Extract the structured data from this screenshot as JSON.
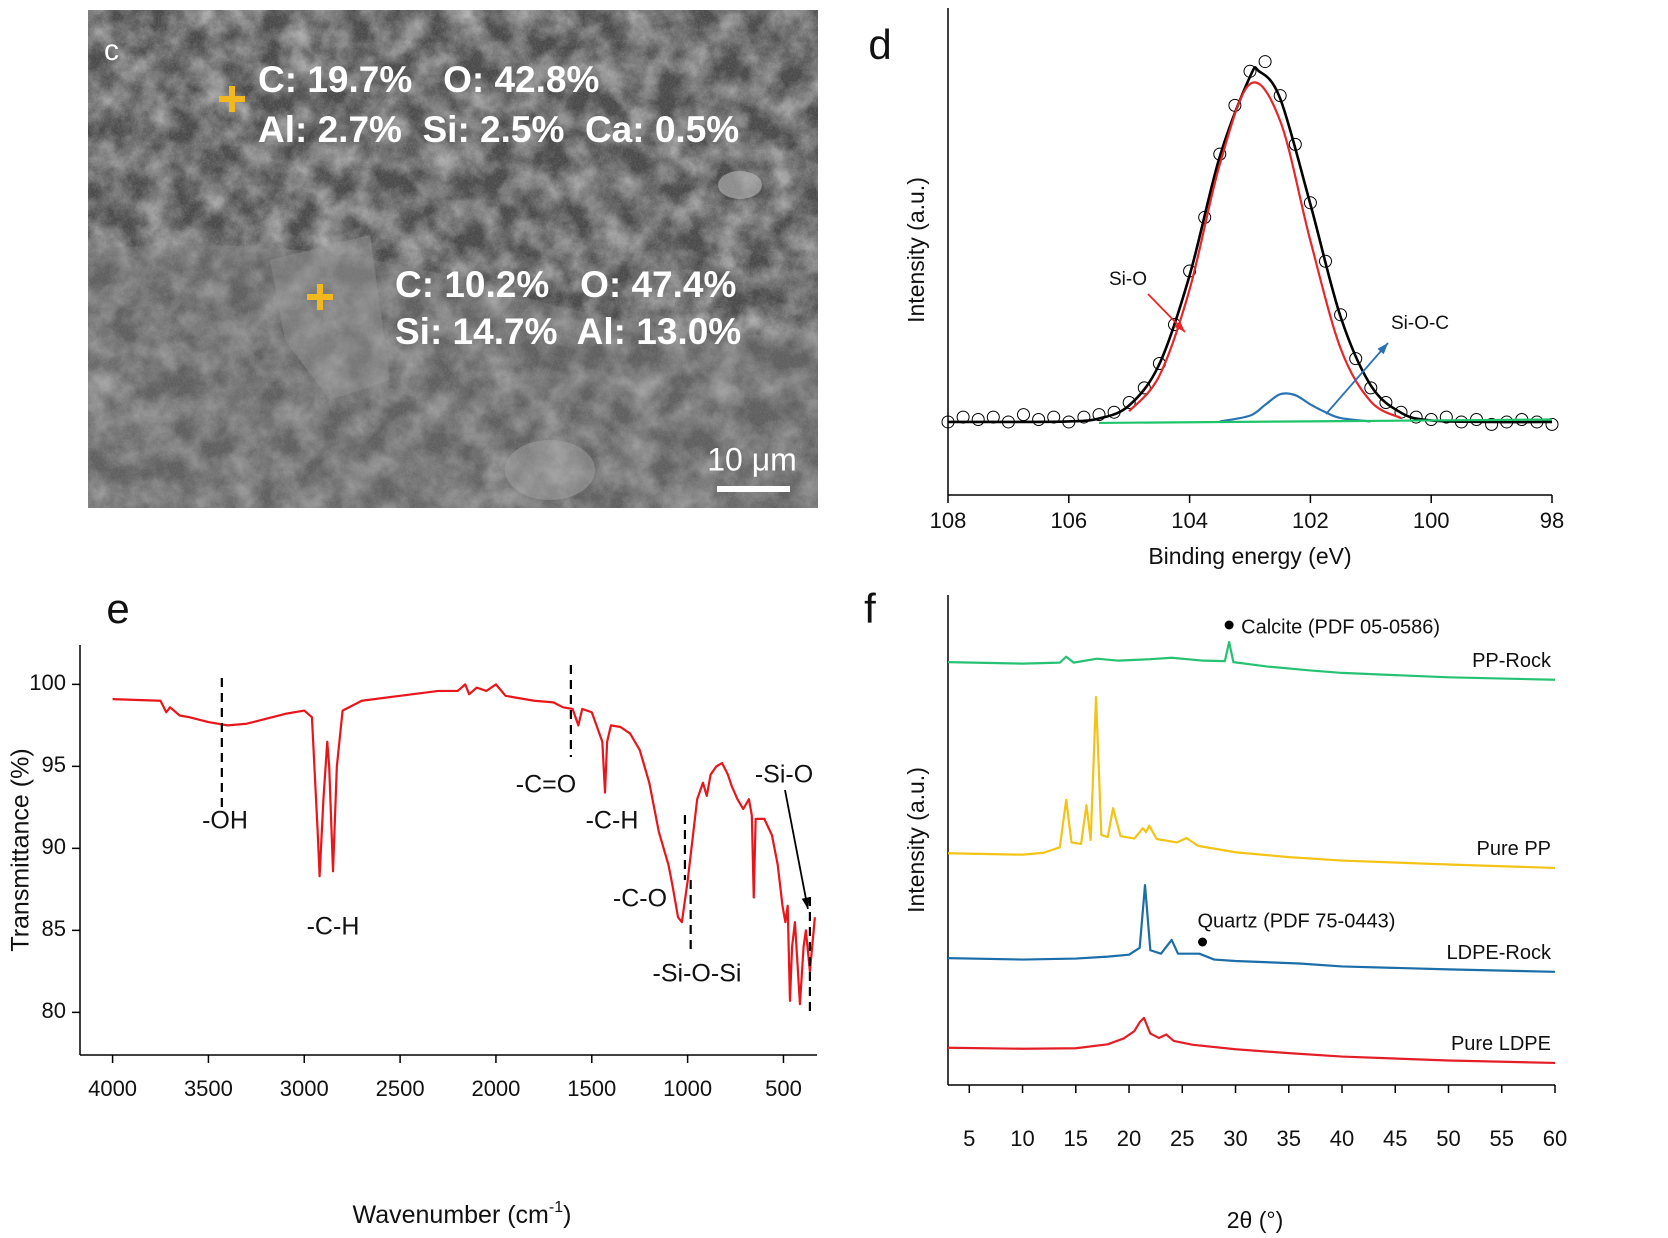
{
  "image_panel": {
    "label": "c",
    "annotations": [
      "C: 19.7%   O: 42.8%",
      "Al: 2.7%  Si: 2.5%  Ca: 0.5%",
      "C: 10.2%   O: 47.4%",
      "Si: 14.7%  Al: 13.0%"
    ],
    "scale_bar": "10 μm"
  },
  "chart_data": [
    {
      "type": "xps",
      "label": "d",
      "x_label": "Binding energy (eV)",
      "y_label": "Intensity (a.u.)",
      "xlim": [
        108,
        98
      ],
      "xticks": [
        108,
        106,
        104,
        102,
        100,
        98
      ],
      "ylim": [
        0,
        1
      ],
      "points": {
        "color": "#000000",
        "x": [
          108,
          107.75,
          107.5,
          107.25,
          107,
          106.75,
          106.5,
          106.25,
          106,
          105.75,
          105.5,
          105.25,
          105,
          104.75,
          104.5,
          104.25,
          104,
          103.75,
          103.5,
          103.25,
          103,
          102.75,
          102.5,
          102.25,
          102,
          101.75,
          101.5,
          101.25,
          101,
          100.75,
          100.5,
          100.25,
          100,
          99.75,
          99.5,
          99.25,
          99,
          98.75,
          98.5,
          98.25,
          98
        ],
        "values": [
          0.15,
          0.16,
          0.155,
          0.16,
          0.15,
          0.165,
          0.155,
          0.16,
          0.15,
          0.16,
          0.165,
          0.17,
          0.19,
          0.22,
          0.27,
          0.35,
          0.46,
          0.57,
          0.7,
          0.8,
          0.87,
          0.89,
          0.82,
          0.72,
          0.6,
          0.48,
          0.37,
          0.28,
          0.22,
          0.19,
          0.17,
          0.16,
          0.155,
          0.16,
          0.15,
          0.155,
          0.145,
          0.15,
          0.155,
          0.15,
          0.145
        ]
      },
      "series": [
        {
          "color": "#000000",
          "x": [
            108,
            107,
            106,
            105.5,
            105,
            104.5,
            104,
            103.5,
            103,
            102.85,
            102.5,
            102,
            101.5,
            101,
            100.5,
            100,
            99,
            98
          ],
          "values": [
            0.15,
            0.15,
            0.151,
            0.157,
            0.184,
            0.269,
            0.451,
            0.695,
            0.859,
            0.87,
            0.814,
            0.597,
            0.366,
            0.225,
            0.169,
            0.153,
            0.15,
            0.15
          ]
        },
        {
          "color": "#e8262a",
          "x": [
            105,
            104.5,
            104,
            103.5,
            103,
            102.5,
            102,
            101.5,
            101,
            100.5
          ],
          "values": [
            0.172,
            0.245,
            0.422,
            0.679,
            0.844,
            0.768,
            0.522,
            0.301,
            0.192,
            0.158
          ]
        },
        {
          "color": "#2a72b5",
          "x": [
            103.5,
            103,
            102.75,
            102.5,
            102.25,
            102,
            101.75,
            101.5,
            101
          ],
          "values": [
            0.151,
            0.163,
            0.185,
            0.207,
            0.205,
            0.186,
            0.17,
            0.158,
            0.151
          ]
        },
        {
          "color": "#1fc46a",
          "x": [
            105.5,
            98
          ],
          "values": [
            0.148,
            0.155
          ]
        }
      ],
      "annotations": [
        {
          "text": "Si-O",
          "color": "#e8262a"
        },
        {
          "text": "Si-O-C",
          "color": "#2a72b5"
        }
      ]
    },
    {
      "type": "ftir",
      "label": "e",
      "x_label": [
        "Wavenumber (cm",
        "-1",
        ")"
      ],
      "y_label": "Transmittance (%)",
      "xlim": [
        4170,
        325
      ],
      "xticks": [
        4000,
        3500,
        3000,
        2500,
        2000,
        1500,
        1000,
        500
      ],
      "ylim": [
        77.4,
        102.4
      ],
      "yticks": [
        80,
        85,
        90,
        95,
        100
      ],
      "series": [
        {
          "color": "#e8161b",
          "x": [
            4000,
            3750,
            3720,
            3700,
            3650,
            3600,
            3500,
            3400,
            3300,
            3200,
            3100,
            3000,
            2960,
            2930,
            2920,
            2900,
            2880,
            2870,
            2850,
            2830,
            2800,
            2700,
            2500,
            2300,
            2200,
            2160,
            2140,
            2100,
            2050,
            2000,
            1950,
            1900,
            1800,
            1700,
            1650,
            1600,
            1570,
            1550,
            1500,
            1445,
            1431,
            1420,
            1400,
            1350,
            1300,
            1250,
            1200,
            1150,
            1100,
            1080,
            1050,
            1030,
            1000,
            980,
            950,
            920,
            900,
            880,
            850,
            820,
            790,
            770,
            740,
            710,
            680,
            665,
            655,
            645,
            600,
            560,
            530,
            505,
            490,
            478,
            466,
            455,
            440,
            414,
            395,
            383,
            362,
            336
          ],
          "values": [
            99.1,
            99,
            98.3,
            98.6,
            98.1,
            98,
            97.7,
            97.5,
            97.6,
            97.9,
            98.2,
            98.4,
            98,
            91,
            88.3,
            93,
            96.5,
            95,
            88.6,
            95,
            98.4,
            99,
            99.3,
            99.6,
            99.6,
            100,
            99.4,
            99.8,
            99.6,
            100,
            99.3,
            99.2,
            99,
            98.9,
            98.6,
            98.5,
            97.5,
            98.5,
            98.3,
            96.5,
            93.4,
            96.5,
            97.5,
            97.4,
            97,
            96,
            94,
            91,
            89,
            87.8,
            85.8,
            85.5,
            88,
            90,
            93,
            94,
            93.2,
            94.5,
            95,
            95.2,
            94.5,
            93.8,
            93,
            92.4,
            93,
            92,
            87,
            91.8,
            91.8,
            90.8,
            89,
            86.5,
            85.5,
            86.5,
            80.7,
            84,
            85.5,
            80.5,
            84,
            85,
            82.5,
            85.8
          ]
        }
      ],
      "annotations": [
        {
          "text": "-OH",
          "x": 3430
        },
        {
          "text": "-C-H",
          "x": 2920
        },
        {
          "text": "-C=O",
          "x": 1609
        },
        {
          "text": "-C-H",
          "x": 1431
        },
        {
          "text": "-C-O",
          "x": 1014
        },
        {
          "text": "-Si-O-Si",
          "x": 984
        },
        {
          "text": "-Si-O",
          "x": 362
        }
      ]
    },
    {
      "type": "xrd",
      "label": "f",
      "x_label": "2θ (°)",
      "y_label": "Intensity (a.u.)",
      "xlim": [
        3,
        60
      ],
      "xticks": [
        5,
        10,
        15,
        20,
        25,
        30,
        35,
        40,
        45,
        50,
        55,
        60
      ],
      "ylim": [
        0,
        100
      ],
      "series": [
        {
          "name": "PP-Rock",
          "color": "#26c274",
          "x": [
            3,
            10,
            13.5,
            14.1,
            14.8,
            17,
            19,
            22,
            24,
            27,
            29,
            29.4,
            29.8,
            33,
            37,
            40,
            50,
            60
          ],
          "values": [
            86.3,
            86,
            86.2,
            87.4,
            86.2,
            87,
            86.6,
            86.9,
            87.2,
            86.6,
            86.5,
            90.4,
            86.3,
            85.4,
            84.6,
            84.1,
            83.2,
            82.7
          ]
        },
        {
          "name": "Pure PP",
          "color": "#f3c316",
          "x": [
            3,
            10,
            12,
            13.5,
            14.1,
            14.6,
            15.5,
            16,
            16.4,
            16.9,
            17.4,
            18,
            18.5,
            19.2,
            20.5,
            21.3,
            21.6,
            21.9,
            22.6,
            24.5,
            25.4,
            26.5,
            30,
            35,
            40,
            50,
            60
          ],
          "values": [
            47.3,
            47,
            47.4,
            48.5,
            58.2,
            49.5,
            49.2,
            57.1,
            50,
            79.2,
            51,
            50.6,
            56.5,
            50.8,
            50.3,
            52.4,
            51.6,
            52.9,
            50.2,
            49.5,
            50.4,
            48.8,
            47.5,
            46.5,
            45.8,
            45,
            44.3
          ]
        },
        {
          "name": "LDPE-Rock",
          "color": "#1b6ea8",
          "x": [
            3,
            10,
            15,
            18,
            20,
            21,
            21.5,
            22,
            23,
            24,
            24.6,
            26.6,
            28,
            30,
            36,
            40,
            50,
            60
          ],
          "values": [
            25.9,
            25.6,
            25.8,
            26.2,
            26.6,
            28,
            40.8,
            27.5,
            26.8,
            29.6,
            26.8,
            26.8,
            25.6,
            25.3,
            24.8,
            24.2,
            23.6,
            23.1
          ]
        },
        {
          "name": "Pure LDPE",
          "color": "#e41e26",
          "x": [
            3,
            10,
            15,
            18,
            19.5,
            20.5,
            21,
            21.4,
            22,
            22.8,
            23.5,
            24.2,
            26,
            30,
            35,
            40,
            50,
            60
          ],
          "values": [
            7.6,
            7.4,
            7.5,
            8.3,
            9.5,
            11,
            12.8,
            13.7,
            10.5,
            9.6,
            10.3,
            9,
            8.2,
            7.3,
            6.5,
            5.8,
            5,
            4.5
          ]
        }
      ],
      "annotations": [
        {
          "text": "Calcite (PDF 05-0586)",
          "x": 29.4
        },
        {
          "text": "Quartz (PDF 75-0443)",
          "x": 26.9
        }
      ]
    }
  ]
}
